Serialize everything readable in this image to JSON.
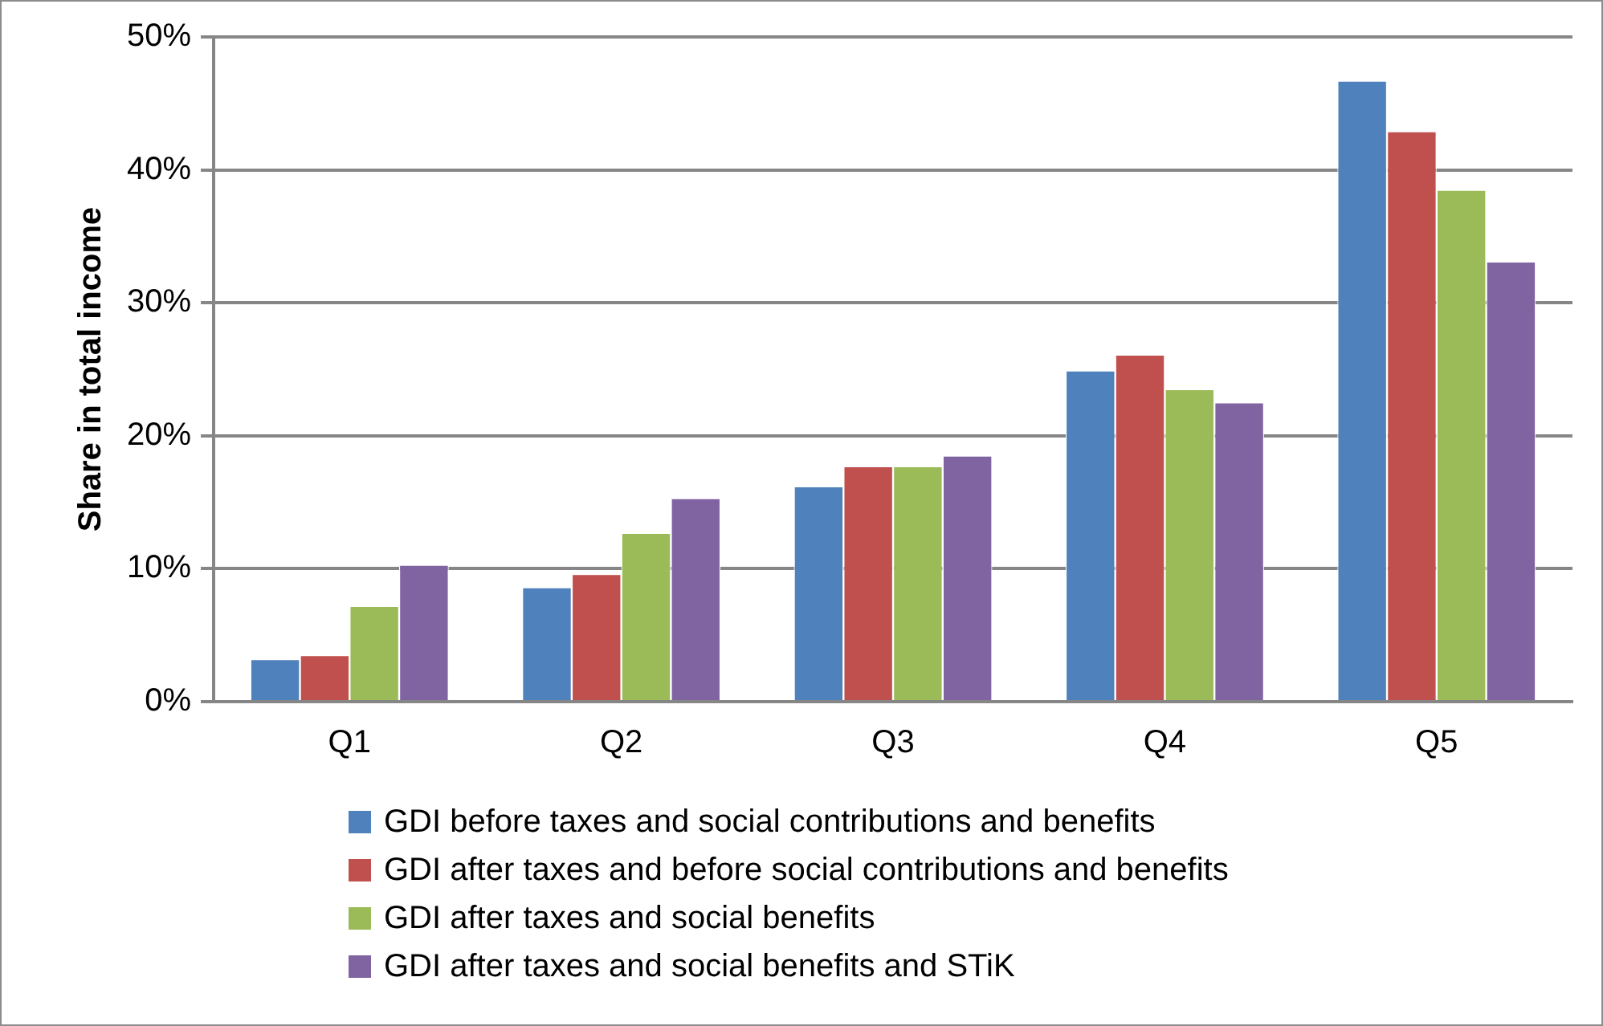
{
  "chart_data": {
    "type": "bar",
    "ylabel": "Share in total income",
    "categories": [
      "Q1",
      "Q2",
      "Q3",
      "Q4",
      "Q5"
    ],
    "series": [
      {
        "name": "GDI before taxes and social contributions and benefits",
        "color": "#4f81bd",
        "values": [
          3.2,
          8.6,
          16.2,
          24.9,
          46.7
        ]
      },
      {
        "name": "GDI after taxes and before social contributions and benefits",
        "color": "#c0504d",
        "values": [
          3.5,
          9.6,
          17.7,
          26.1,
          42.9
        ]
      },
      {
        "name": "GDI after taxes and social benefits",
        "color": "#9bbb59",
        "values": [
          7.2,
          12.7,
          17.7,
          23.5,
          38.5
        ]
      },
      {
        "name": "GDI after taxes and social benefits and STiK",
        "color": "#8064a2",
        "values": [
          10.3,
          15.3,
          18.5,
          22.5,
          33.1
        ]
      }
    ],
    "ylim": [
      0,
      50
    ],
    "yticks": [
      {
        "value": 0,
        "label": "0%"
      },
      {
        "value": 10,
        "label": "10%"
      },
      {
        "value": 20,
        "label": "20%"
      },
      {
        "value": 30,
        "label": "30%"
      },
      {
        "value": 40,
        "label": "40%"
      },
      {
        "value": 50,
        "label": "50%"
      }
    ],
    "grid": "y",
    "legend": "bottom"
  }
}
